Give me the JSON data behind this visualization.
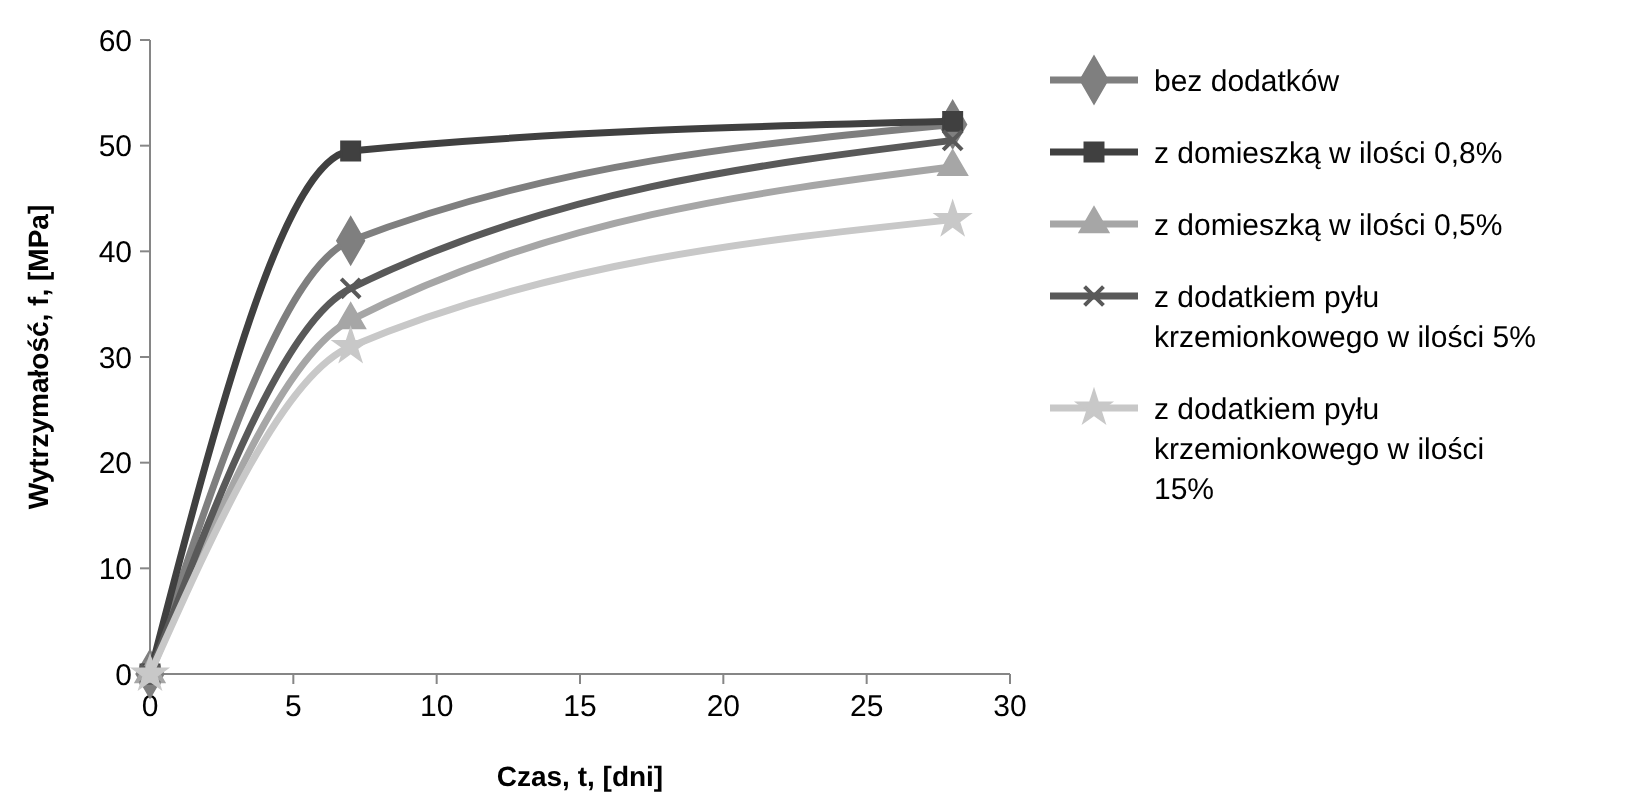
{
  "chart_data": {
    "type": "line",
    "xlabel": "Czas, t, [dni]",
    "ylabel": "Wytrzymałość, f, [MPa]",
    "x": [
      0,
      7,
      28
    ],
    "xlim": [
      0,
      30
    ],
    "xticks": [
      0,
      5,
      10,
      15,
      20,
      25,
      30
    ],
    "ylim": [
      0,
      60
    ],
    "yticks": [
      0,
      10,
      20,
      30,
      40,
      50,
      60
    ],
    "grid": false,
    "legend": "right",
    "line_style": "solid",
    "series": [
      {
        "name": "bez dodatków",
        "color": "#7f7f7f",
        "marker": "diamond",
        "values": [
          0,
          41,
          52
        ]
      },
      {
        "name": "z domieszką w ilości 0,8%",
        "color": "#404040",
        "marker": "square",
        "values": [
          0,
          49.5,
          52.3
        ]
      },
      {
        "name": "z domieszką w ilości 0,5%",
        "color": "#a6a6a6",
        "marker": "triangle",
        "values": [
          0,
          33.5,
          48
        ]
      },
      {
        "name": "z dodatkiem pyłu krzemionkowego w ilości 5%",
        "color": "#595959",
        "marker": "cross",
        "values": [
          0,
          36.5,
          50.5
        ]
      },
      {
        "name": "z dodatkiem pyłu krzemionkowego w ilości 15%",
        "color": "#c8c8c8",
        "marker": "star",
        "values": [
          0,
          31,
          43
        ]
      }
    ]
  }
}
